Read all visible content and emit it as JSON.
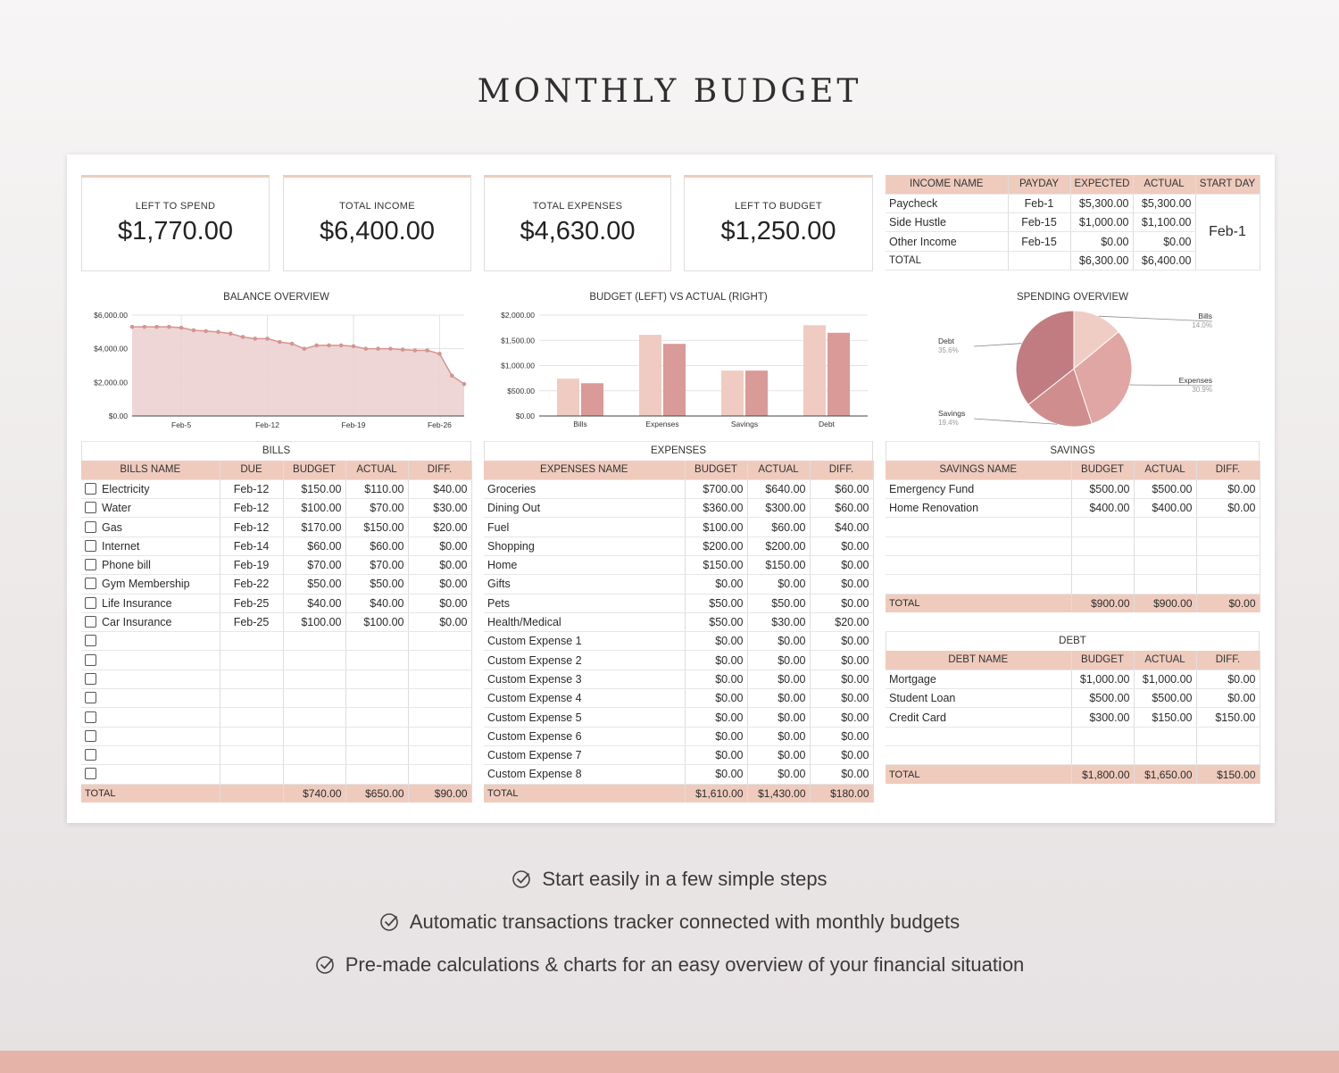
{
  "title": "MONTHLY BUDGET",
  "colors": {
    "accent": "#efcbbd",
    "chart_fill": "#ecd2d1",
    "chart_line": "#d59590",
    "bar_budget": "#f0cbc1",
    "bar_actual": "#d99a98"
  },
  "kpis": [
    {
      "label": "LEFT TO SPEND",
      "value": "$1,770.00"
    },
    {
      "label": "TOTAL INCOME",
      "value": "$6,400.00"
    },
    {
      "label": "TOTAL EXPENSES",
      "value": "$4,630.00"
    },
    {
      "label": "LEFT TO BUDGET",
      "value": "$1,250.00"
    }
  ],
  "income": {
    "headers": [
      "INCOME NAME",
      "PAYDAY",
      "EXPECTED",
      "ACTUAL",
      "START DAY"
    ],
    "rows": [
      [
        "Paycheck",
        "Feb-1",
        "$5,300.00",
        "$5,300.00"
      ],
      [
        "Side Hustle",
        "Feb-15",
        "$1,000.00",
        "$1,100.00"
      ],
      [
        "Other Income",
        "Feb-15",
        "$0.00",
        "$0.00"
      ]
    ],
    "total": [
      "TOTAL",
      "",
      "$6,300.00",
      "$6,400.00"
    ],
    "start_day": "Feb-1"
  },
  "chart_data": [
    {
      "type": "area",
      "title": "BALANCE OVERVIEW",
      "y_ticks": [
        "$6,000.00",
        "$4,000.00",
        "$2,000.00",
        "$0.00"
      ],
      "x_ticks": [
        "Feb-5",
        "Feb-12",
        "Feb-19",
        "Feb-26"
      ],
      "ylim": [
        0,
        6000
      ],
      "x_days": [
        1,
        2,
        3,
        4,
        5,
        6,
        7,
        8,
        9,
        10,
        11,
        12,
        13,
        14,
        15,
        16,
        17,
        18,
        19,
        20,
        21,
        22,
        23,
        24,
        25,
        26,
        27,
        28
      ],
      "values": [
        5300,
        5300,
        5300,
        5300,
        5250,
        5100,
        5050,
        5000,
        4900,
        4700,
        4600,
        4600,
        4400,
        4300,
        4000,
        4200,
        4200,
        4200,
        4150,
        4000,
        4000,
        4000,
        3950,
        3900,
        3900,
        3700,
        2400,
        1900
      ],
      "grid": true
    },
    {
      "type": "bar",
      "title": "BUDGET (LEFT) VS ACTUAL (RIGHT)",
      "categories": [
        "Bills",
        "Expenses",
        "Savings",
        "Debt"
      ],
      "y_ticks": [
        "$2,000.00",
        "$1,500.00",
        "$1,000.00",
        "$500.00",
        "$0.00"
      ],
      "ylim": [
        0,
        2000
      ],
      "series": [
        {
          "values": [
            740,
            1610,
            900,
            1800
          ]
        },
        {
          "values": [
            650,
            1430,
            900,
            1650
          ]
        }
      ],
      "grid": true
    },
    {
      "type": "pie",
      "title": "SPENDING OVERVIEW",
      "slices": [
        {
          "label": "Bills",
          "value": 14.0,
          "pct": "14.0%",
          "color": "#efcdc4"
        },
        {
          "label": "Expenses",
          "value": 30.9,
          "pct": "30.9%",
          "color": "#e0a6a3"
        },
        {
          "label": "Savings",
          "value": 19.4,
          "pct": "19.4%",
          "color": "#cf8e8d"
        },
        {
          "label": "Debt",
          "value": 35.6,
          "pct": "35.6%",
          "color": "#c07c80"
        }
      ]
    }
  ],
  "bills": {
    "title": "BILLS",
    "headers": [
      "BILLS NAME",
      "DUE",
      "BUDGET",
      "ACTUAL",
      "DIFF."
    ],
    "rows": [
      [
        "Electricity",
        "Feb-12",
        "$150.00",
        "$110.00",
        "$40.00"
      ],
      [
        "Water",
        "Feb-12",
        "$100.00",
        "$70.00",
        "$30.00"
      ],
      [
        "Gas",
        "Feb-12",
        "$170.00",
        "$150.00",
        "$20.00"
      ],
      [
        "Internet",
        "Feb-14",
        "$60.00",
        "$60.00",
        "$0.00"
      ],
      [
        "Phone bill",
        "Feb-19",
        "$70.00",
        "$70.00",
        "$0.00"
      ],
      [
        "Gym Membership",
        "Feb-22",
        "$50.00",
        "$50.00",
        "$0.00"
      ],
      [
        "Life Insurance",
        "Feb-25",
        "$40.00",
        "$40.00",
        "$0.00"
      ],
      [
        "Car Insurance",
        "Feb-25",
        "$100.00",
        "$100.00",
        "$0.00"
      ],
      [
        "",
        "",
        "",
        "",
        ""
      ],
      [
        "",
        "",
        "",
        "",
        ""
      ],
      [
        "",
        "",
        "",
        "",
        ""
      ],
      [
        "",
        "",
        "",
        "",
        ""
      ],
      [
        "",
        "",
        "",
        "",
        ""
      ],
      [
        "",
        "",
        "",
        "",
        ""
      ],
      [
        "",
        "",
        "",
        "",
        ""
      ],
      [
        "",
        "",
        "",
        "",
        ""
      ]
    ],
    "total": [
      "TOTAL",
      "",
      "$740.00",
      "$650.00",
      "$90.00"
    ]
  },
  "expenses": {
    "title": "EXPENSES",
    "headers": [
      "EXPENSES NAME",
      "BUDGET",
      "ACTUAL",
      "DIFF."
    ],
    "rows": [
      [
        "Groceries",
        "$700.00",
        "$640.00",
        "$60.00"
      ],
      [
        "Dining Out",
        "$360.00",
        "$300.00",
        "$60.00"
      ],
      [
        "Fuel",
        "$100.00",
        "$60.00",
        "$40.00"
      ],
      [
        "Shopping",
        "$200.00",
        "$200.00",
        "$0.00"
      ],
      [
        "Home",
        "$150.00",
        "$150.00",
        "$0.00"
      ],
      [
        "Gifts",
        "$0.00",
        "$0.00",
        "$0.00"
      ],
      [
        "Pets",
        "$50.00",
        "$50.00",
        "$0.00"
      ],
      [
        "Health/Medical",
        "$50.00",
        "$30.00",
        "$20.00"
      ],
      [
        "Custom Expense 1",
        "$0.00",
        "$0.00",
        "$0.00"
      ],
      [
        "Custom Expense 2",
        "$0.00",
        "$0.00",
        "$0.00"
      ],
      [
        "Custom Expense 3",
        "$0.00",
        "$0.00",
        "$0.00"
      ],
      [
        "Custom Expense 4",
        "$0.00",
        "$0.00",
        "$0.00"
      ],
      [
        "Custom Expense 5",
        "$0.00",
        "$0.00",
        "$0.00"
      ],
      [
        "Custom Expense 6",
        "$0.00",
        "$0.00",
        "$0.00"
      ],
      [
        "Custom Expense 7",
        "$0.00",
        "$0.00",
        "$0.00"
      ],
      [
        "Custom Expense 8",
        "$0.00",
        "$0.00",
        "$0.00"
      ]
    ],
    "total": [
      "TOTAL",
      "$1,610.00",
      "$1,430.00",
      "$180.00"
    ]
  },
  "savings": {
    "title": "SAVINGS",
    "headers": [
      "SAVINGS NAME",
      "BUDGET",
      "ACTUAL",
      "DIFF."
    ],
    "rows": [
      [
        "Emergency Fund",
        "$500.00",
        "$500.00",
        "$0.00"
      ],
      [
        "Home Renovation",
        "$400.00",
        "$400.00",
        "$0.00"
      ],
      [
        "",
        "",
        "",
        ""
      ],
      [
        "",
        "",
        "",
        ""
      ],
      [
        "",
        "",
        "",
        ""
      ],
      [
        "",
        "",
        "",
        ""
      ]
    ],
    "total": [
      "TOTAL",
      "$900.00",
      "$900.00",
      "$0.00"
    ]
  },
  "debt": {
    "title": "DEBT",
    "headers": [
      "DEBT NAME",
      "BUDGET",
      "ACTUAL",
      "DIFF."
    ],
    "rows": [
      [
        "Mortgage",
        "$1,000.00",
        "$1,000.00",
        "$0.00"
      ],
      [
        "Student Loan",
        "$500.00",
        "$500.00",
        "$0.00"
      ],
      [
        "Credit Card",
        "$300.00",
        "$150.00",
        "$150.00"
      ],
      [
        "",
        "",
        "",
        ""
      ],
      [
        "",
        "",
        "",
        ""
      ]
    ],
    "total": [
      "TOTAL",
      "$1,800.00",
      "$1,650.00",
      "$150.00"
    ]
  },
  "features": [
    {
      "icon": "check-circle-icon",
      "text": "Start easily in a few simple steps"
    },
    {
      "icon": "check-circle-icon",
      "text": "Automatic transactions tracker connected with monthly budgets"
    },
    {
      "icon": "check-circle-icon",
      "text": "Pre-made calculations & charts for an easy overview of your financial situation"
    }
  ]
}
